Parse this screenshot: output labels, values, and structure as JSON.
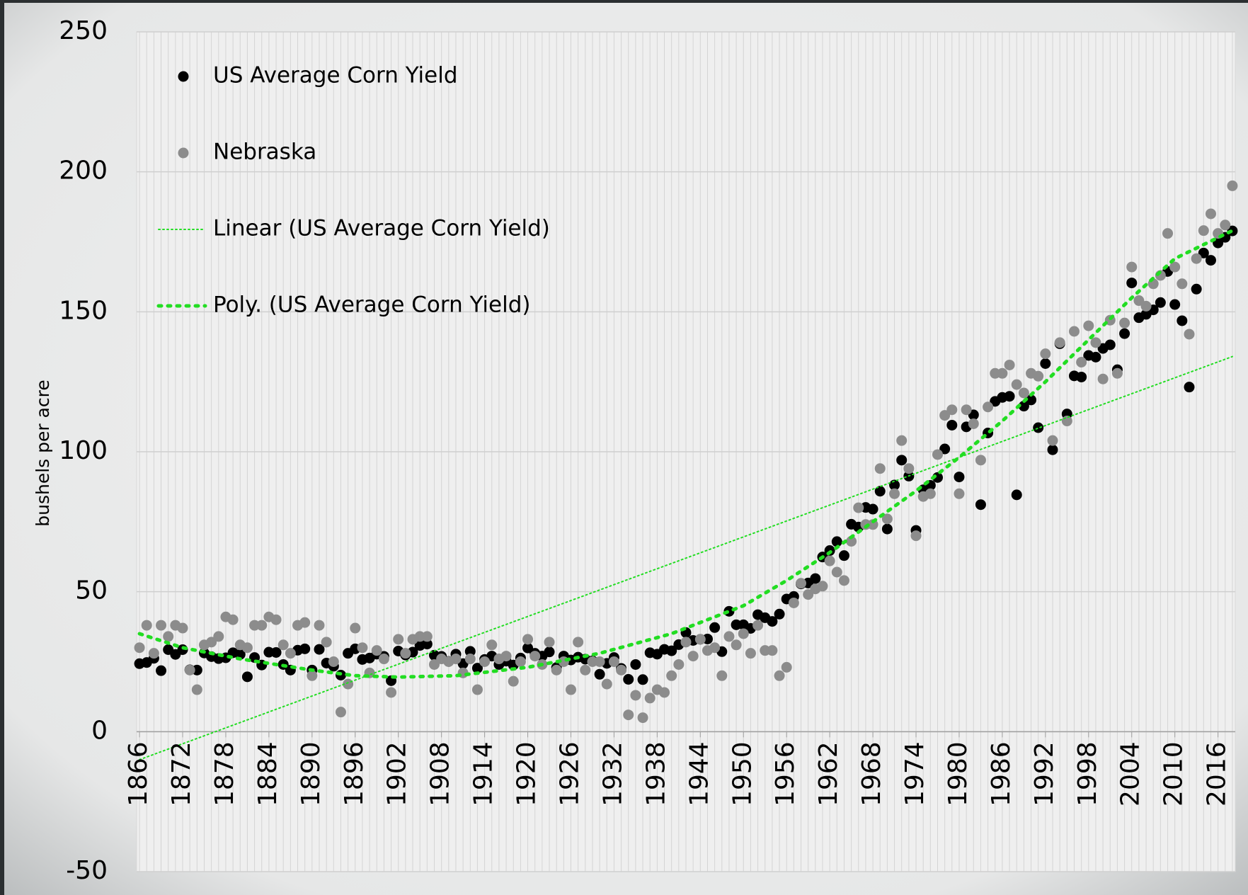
{
  "chart_data": {
    "type": "scatter",
    "y_label": "bushels per acre",
    "x": [
      1866,
      1867,
      1868,
      1869,
      1870,
      1871,
      1872,
      1873,
      1874,
      1875,
      1876,
      1877,
      1878,
      1879,
      1880,
      1881,
      1882,
      1883,
      1884,
      1885,
      1886,
      1887,
      1888,
      1889,
      1890,
      1891,
      1892,
      1893,
      1894,
      1895,
      1896,
      1897,
      1898,
      1899,
      1900,
      1901,
      1902,
      1903,
      1904,
      1905,
      1906,
      1907,
      1908,
      1909,
      1910,
      1911,
      1912,
      1913,
      1914,
      1915,
      1916,
      1917,
      1918,
      1919,
      1920,
      1921,
      1922,
      1923,
      1924,
      1925,
      1926,
      1927,
      1928,
      1929,
      1930,
      1931,
      1932,
      1933,
      1934,
      1935,
      1936,
      1937,
      1938,
      1939,
      1940,
      1941,
      1942,
      1943,
      1944,
      1945,
      1946,
      1947,
      1948,
      1949,
      1950,
      1951,
      1952,
      1953,
      1954,
      1955,
      1956,
      1957,
      1958,
      1959,
      1960,
      1961,
      1962,
      1963,
      1964,
      1965,
      1966,
      1967,
      1968,
      1969,
      1970,
      1971,
      1972,
      1973,
      1974,
      1975,
      1976,
      1977,
      1978,
      1979,
      1980,
      1981,
      1982,
      1983,
      1984,
      1985,
      1986,
      1987,
      1988,
      1989,
      1990,
      1991,
      1992,
      1993,
      1994,
      1995,
      1996,
      1997,
      1998,
      1999,
      2000,
      2001,
      2002,
      2003,
      2004,
      2005,
      2006,
      2007,
      2008,
      2009,
      2010,
      2011,
      2012,
      2013,
      2014,
      2015,
      2016,
      2017,
      2018
    ],
    "series": [
      {
        "name": "US Average Corn Yield",
        "color": "#000000",
        "values": [
          24.3,
          24.7,
          26.2,
          21.8,
          29.3,
          27.6,
          29.3,
          22.1,
          22.0,
          28.1,
          26.8,
          26.1,
          26.4,
          28.2,
          27.6,
          19.6,
          26.5,
          23.8,
          28.4,
          28.3,
          24.0,
          22.0,
          29.1,
          29.6,
          22.0,
          29.4,
          24.5,
          23.4,
          20.2,
          28.0,
          29.6,
          25.8,
          26.3,
          27.7,
          26.9,
          18.2,
          28.8,
          27.4,
          28.4,
          30.8,
          31.3,
          27.3,
          26.9,
          25.1,
          27.7,
          24.3,
          28.7,
          22.7,
          25.8,
          27.0,
          24.0,
          25.2,
          23.8,
          26.3,
          29.9,
          28.0,
          27.0,
          28.5,
          22.9,
          27.0,
          25.6,
          26.6,
          25.9,
          25.3,
          20.5,
          24.4,
          26.5,
          22.6,
          18.7,
          24.0,
          18.6,
          28.2,
          27.7,
          29.4,
          28.9,
          31.1,
          35.4,
          32.6,
          33.0,
          33.1,
          37.2,
          28.6,
          43.0,
          38.2,
          38.2,
          36.9,
          41.8,
          40.7,
          39.4,
          42.0,
          47.4,
          48.3,
          52.8,
          53.1,
          54.7,
          62.4,
          64.7,
          67.9,
          62.9,
          74.1,
          73.1,
          80.1,
          79.5,
          85.9,
          72.4,
          88.1,
          97.0,
          91.3,
          71.9,
          86.4,
          88.0,
          90.8,
          101.0,
          109.5,
          91.0,
          108.9,
          113.2,
          81.1,
          106.7,
          118.0,
          119.4,
          119.8,
          84.6,
          116.3,
          118.5,
          108.6,
          131.5,
          100.7,
          138.6,
          113.5,
          127.1,
          126.7,
          134.4,
          133.8,
          136.9,
          138.2,
          129.3,
          142.2,
          160.3,
          147.9,
          149.1,
          150.7,
          153.3,
          164.4,
          152.6,
          146.8,
          123.1,
          158.1,
          171.0,
          168.4,
          174.6,
          176.6,
          178.9
        ]
      },
      {
        "name": "Nebraska",
        "color": "#8c8c8c",
        "values": [
          30,
          38,
          28,
          38,
          34,
          38,
          37,
          22,
          15,
          31,
          32,
          34,
          41,
          40,
          31,
          30,
          38,
          38,
          41,
          40,
          31,
          28,
          38,
          39,
          20,
          38,
          32,
          25,
          7,
          17,
          37,
          30,
          21,
          29,
          26,
          14,
          33,
          28,
          33,
          34,
          34,
          24,
          26,
          25,
          26,
          21,
          26,
          15,
          25,
          31,
          26,
          27,
          18,
          25,
          33,
          27,
          24,
          32,
          22,
          25,
          15,
          32,
          22,
          25,
          25,
          17,
          25,
          22,
          6,
          13,
          5,
          12,
          15,
          14,
          20,
          24,
          32,
          27,
          33,
          29,
          30,
          20,
          34,
          31,
          35,
          28,
          38,
          29,
          29,
          20,
          23,
          46,
          53,
          49,
          51,
          52,
          61,
          57,
          54,
          68,
          80,
          74,
          74,
          94,
          76,
          85,
          104,
          94,
          70,
          84,
          85,
          99,
          113,
          115,
          85,
          115,
          110,
          97,
          116,
          128,
          128,
          131,
          124,
          121,
          128,
          127,
          135,
          104,
          139,
          111,
          143,
          132,
          145,
          139,
          126,
          147,
          128,
          146,
          166,
          154,
          152,
          160,
          163,
          178,
          166,
          160,
          142,
          169,
          179,
          185,
          178,
          181,
          195
        ]
      },
      {
        "name": "Linear (US Average Corn Yield)",
        "kind": "line",
        "color": "#22dd22",
        "line_width": 2,
        "x": [
          1866,
          2018
        ],
        "values": [
          -10,
          134
        ]
      },
      {
        "name": "Poly. (US Average Corn Yield)",
        "kind": "line",
        "color": "#22dd22",
        "line_width": 5,
        "x": [
          1866,
          1872,
          1880,
          1890,
          1896,
          1902,
          1910,
          1920,
          1930,
          1940,
          1950,
          1956,
          1962,
          1968,
          1974,
          1980,
          1986,
          1992,
          1998,
          2004,
          2010,
          2018
        ],
        "values": [
          35,
          30,
          26,
          22,
          20,
          19.5,
          20,
          23,
          28,
          35,
          45,
          54,
          64,
          75,
          86,
          98,
          111,
          125,
          140,
          155,
          169,
          179
        ]
      }
    ],
    "xlim": [
      1865.6,
      2018.4
    ],
    "xticks": [
      1866,
      1872,
      1878,
      1884,
      1890,
      1896,
      1902,
      1908,
      1914,
      1920,
      1926,
      1932,
      1938,
      1944,
      1950,
      1956,
      1962,
      1968,
      1974,
      1980,
      1986,
      1992,
      1998,
      2004,
      2010,
      2016
    ],
    "ylim": [
      -50,
      250
    ],
    "yticks": [
      -50,
      0,
      50,
      100,
      150,
      200,
      250
    ],
    "grid": true
  }
}
